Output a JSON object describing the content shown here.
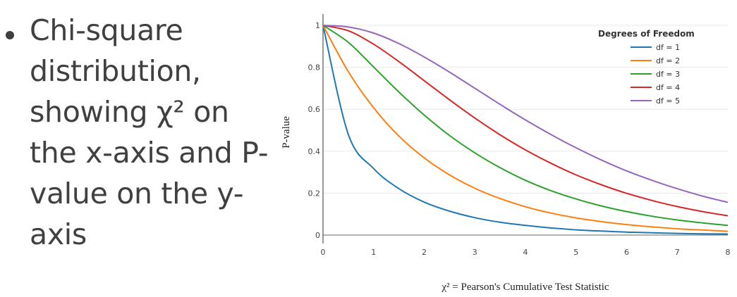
{
  "slide": {
    "bullet_text": "Chi-square distribution, showing χ² on the x-axis and P-value on the y-axis"
  },
  "chart_data": {
    "type": "line",
    "title": "",
    "xlabel": "χ² = Pearson's Cumulative Test Statistic",
    "ylabel": "P-value",
    "xlim": [
      0,
      8
    ],
    "ylim": [
      0,
      1
    ],
    "x_ticks": [
      "0",
      "1",
      "2",
      "3",
      "4",
      "5",
      "6",
      "7",
      "8"
    ],
    "y_ticks": [
      "0",
      "0.2",
      "0.4",
      "0.6",
      "0.8",
      "1"
    ],
    "grid": "horizontal",
    "legend": {
      "title": "Degrees of Freedom",
      "placement": "top-right"
    },
    "x": [
      0,
      0.5,
      1,
      1.5,
      2,
      2.5,
      3,
      3.5,
      4,
      4.5,
      5,
      5.5,
      6,
      6.5,
      7,
      7.5,
      8
    ],
    "series": [
      {
        "name": "df = 1",
        "color": "#1f77b4",
        "values": [
          1,
          0.48,
          0.317,
          0.221,
          0.157,
          0.114,
          0.083,
          0.061,
          0.046,
          0.034,
          0.025,
          0.019,
          0.014,
          0.011,
          0.008,
          0.006,
          0.005
        ]
      },
      {
        "name": "df = 2",
        "color": "#ff7f0e",
        "values": [
          1,
          0.779,
          0.607,
          0.472,
          0.368,
          0.287,
          0.223,
          0.174,
          0.135,
          0.105,
          0.082,
          0.064,
          0.05,
          0.039,
          0.03,
          0.024,
          0.018
        ]
      },
      {
        "name": "df = 3",
        "color": "#2ca02c",
        "values": [
          1,
          0.919,
          0.801,
          0.682,
          0.572,
          0.475,
          0.392,
          0.321,
          0.261,
          0.212,
          0.172,
          0.139,
          0.112,
          0.09,
          0.072,
          0.058,
          0.046
        ]
      },
      {
        "name": "df = 4",
        "color": "#d62728",
        "values": [
          1,
          0.974,
          0.91,
          0.827,
          0.736,
          0.645,
          0.558,
          0.478,
          0.406,
          0.343,
          0.287,
          0.24,
          0.199,
          0.165,
          0.136,
          0.112,
          0.092
        ]
      },
      {
        "name": "df = 5",
        "color": "#9467bd",
        "values": [
          1,
          0.992,
          0.963,
          0.913,
          0.849,
          0.777,
          0.7,
          0.623,
          0.549,
          0.48,
          0.416,
          0.358,
          0.306,
          0.261,
          0.221,
          0.186,
          0.156
        ]
      }
    ]
  }
}
